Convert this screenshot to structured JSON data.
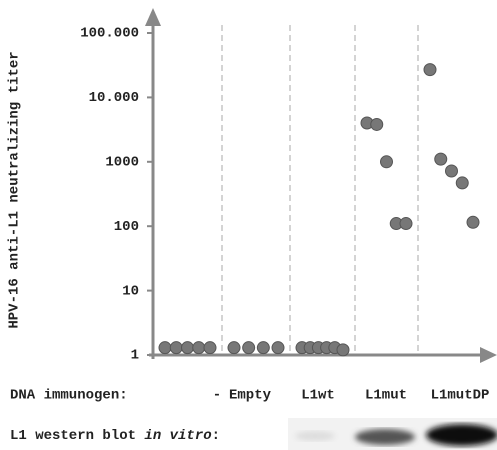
{
  "chart_data": {
    "type": "strip",
    "log_scale": true,
    "y_label": "HPV-16 anti-L1 neutralizing titer",
    "x_label": "DNA immunogen:",
    "categories": [
      "-",
      "Empty",
      "L1wt",
      "L1mut",
      "L1mutDP"
    ],
    "values": [
      [
        1.3,
        1.3,
        1.3,
        1.3,
        1.3
      ],
      [
        1.3,
        1.3,
        1.3,
        1.3
      ],
      [
        1.3,
        1.3,
        1.3,
        1.3,
        1.3,
        1.2
      ],
      [
        4000,
        3800,
        1000,
        110,
        110
      ],
      [
        27000,
        1100,
        720,
        470,
        115
      ]
    ],
    "color": "#777777",
    "ylim": [
      1,
      100000
    ],
    "yticks": [
      1,
      10,
      100,
      1000,
      {
        "value": 10000,
        "label": "10.000"
      },
      {
        "value": 100000,
        "label": "100.000"
      }
    ],
    "blot_label": [
      "L1 western blot ",
      "in vitro",
      ":"
    ]
  }
}
